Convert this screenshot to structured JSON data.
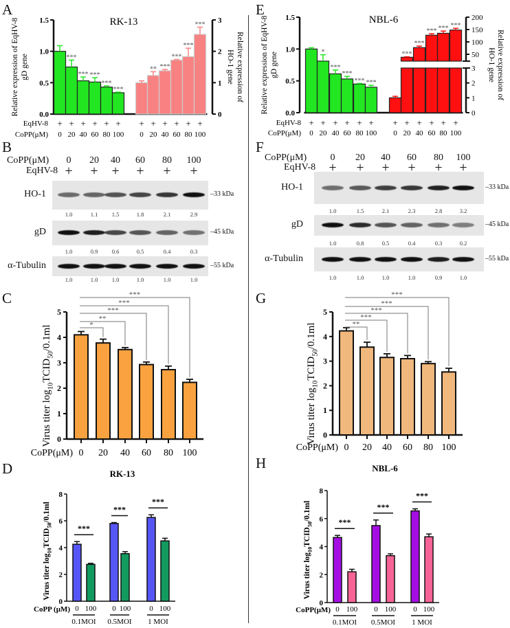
{
  "panel_labels": {
    "A": "A",
    "B": "B",
    "C": "C",
    "D": "D",
    "E": "E",
    "F": "F",
    "G": "G",
    "H": "H"
  },
  "blots": [
    {
      "id": "B",
      "copp_label": "CoPP(μM)",
      "virus_label": "EqHV-8",
      "plus": "+",
      "doses": [
        "0",
        "20",
        "40",
        "60",
        "80",
        "100"
      ],
      "rows": [
        {
          "name": "HO-1",
          "kda": "33 kDa",
          "quant": [
            "1.0",
            "1.1",
            "1.5",
            "1.8",
            "2.1",
            "2.9"
          ]
        },
        {
          "name": "gD",
          "kda": "45 kDa",
          "quant": [
            "1.0",
            "0.9",
            "0.6",
            "0.5",
            "0.4",
            "0.3"
          ]
        },
        {
          "name": "α-Tubulin",
          "kda": "55 kDa",
          "quant": [
            "1.0",
            "1.0",
            "1.0",
            "1.0",
            "1.0",
            "1.0"
          ]
        }
      ]
    },
    {
      "id": "F",
      "copp_label": "CoPP(μM)",
      "virus_label": "EqHV-8",
      "plus": "+",
      "doses": [
        "0",
        "20",
        "40",
        "60",
        "80",
        "100"
      ],
      "rows": [
        {
          "name": "HO-1",
          "kda": "33 kDa",
          "quant": [
            "1.0",
            "1.5",
            "2.1",
            "2.3",
            "2.8",
            "3.2"
          ]
        },
        {
          "name": "gD",
          "kda": "45 kDa",
          "quant": [
            "1.0",
            "0.8",
            "0.5",
            "0.4",
            "0.3",
            "0.2"
          ]
        },
        {
          "name": "α-Tubulin",
          "kda": "55 kDa",
          "quant": [
            "1.0",
            "1.0",
            "1.0",
            "1.0",
            "0.9",
            "1.0"
          ]
        }
      ]
    }
  ],
  "chart_data": [
    {
      "id": "A",
      "type": "bar",
      "title": "RK-13",
      "ylabel_left": [
        "Relative expression of EqHV-8",
        "gD gene"
      ],
      "ylabel_right": [
        "Relative expression of",
        "HO-1 gene"
      ],
      "row_labels": [
        "EqHV-8",
        "CoPP(μM)"
      ],
      "plus": "+",
      "categories": [
        "0",
        "20",
        "40",
        "60",
        "80",
        "100"
      ],
      "ylim_left": [
        0,
        1.5
      ],
      "left_ticks": [
        "0.0",
        "0.5",
        "1.0",
        "1.5"
      ],
      "ylim_right": [
        0,
        3
      ],
      "right_ticks": [
        "0",
        "1",
        "2",
        "3"
      ],
      "series": [
        {
          "name": "gD",
          "axis": "left",
          "color": "#22e622",
          "values": [
            1.0,
            0.75,
            0.53,
            0.51,
            0.43,
            0.34
          ],
          "errors": [
            0.09,
            0.11,
            0.06,
            0.07,
            0.02,
            0.01
          ],
          "sig": [
            "",
            "***",
            "***",
            "***",
            "***",
            "***"
          ]
        },
        {
          "name": "HO-1",
          "axis": "right",
          "color": "#f88282",
          "values": [
            1.0,
            1.23,
            1.38,
            1.72,
            1.83,
            2.54
          ],
          "errors": [
            0.06,
            0.12,
            0.04,
            0.02,
            0.27,
            0.23
          ],
          "sig": [
            "",
            "**",
            "***",
            "***",
            "***",
            "***"
          ]
        }
      ]
    },
    {
      "id": "E",
      "type": "bar",
      "title": "NBL-6",
      "ylabel_left": [
        "Relative expression of EqHV-8",
        "gD gene"
      ],
      "ylabel_right": [
        "Relative expression of",
        "HO-1 gene"
      ],
      "row_labels": [
        "EqHV-8",
        "CoPP(μM)"
      ],
      "plus": "+",
      "categories": [
        "0",
        "20",
        "40",
        "60",
        "80",
        "100"
      ],
      "ylim_left": [
        0,
        1.5
      ],
      "left_ticks": [
        "0.0",
        "0.5",
        "1.0",
        "1.5"
      ],
      "ylim_right_lower": [
        0,
        3
      ],
      "right_ticks_lower": [
        "0",
        "1",
        "2",
        "3"
      ],
      "ylim_right_upper": [
        22,
        200
      ],
      "right_ticks_upper": [
        "50",
        "100",
        "150",
        "200"
      ],
      "series": [
        {
          "name": "gD",
          "axis": "left",
          "color": "#22e622",
          "values": [
            1.0,
            0.81,
            0.61,
            0.53,
            0.45,
            0.4
          ],
          "errors": [
            0.02,
            0.1,
            0.06,
            0.04,
            0.01,
            0.03
          ],
          "sig": [
            "",
            "*",
            "***",
            "***",
            "***",
            "***"
          ]
        },
        {
          "name": "HO-1",
          "axis": "right",
          "color": "#ff1010",
          "values": [
            1.0,
            38,
            77,
            127,
            135,
            148
          ],
          "errors": [
            0.1,
            2,
            6,
            6,
            9,
            7
          ],
          "sig": [
            "",
            "***",
            "***",
            "***",
            "***",
            "***"
          ]
        }
      ]
    },
    {
      "id": "C",
      "type": "bar",
      "color": "#f9a23f",
      "ylabel_parts": [
        "Virus titer log",
        "10",
        "TCID",
        "50",
        "/0.1ml"
      ],
      "xlabel": "CoPP(μM)",
      "categories": [
        "0",
        "20",
        "40",
        "60",
        "80",
        "100"
      ],
      "ylim": [
        0,
        5
      ],
      "ticks": [
        "0",
        "1",
        "2",
        "3",
        "4",
        "5"
      ],
      "values": [
        4.1,
        3.78,
        3.52,
        2.93,
        2.73,
        2.23
      ],
      "errors": [
        0.13,
        0.15,
        0.08,
        0.1,
        0.14,
        0.12
      ],
      "comparisons": [
        {
          "from": "0",
          "to": "20",
          "label": "*"
        },
        {
          "from": "0",
          "to": "40",
          "label": "**"
        },
        {
          "from": "0",
          "to": "60",
          "label": "***"
        },
        {
          "from": "0",
          "to": "80",
          "label": "***"
        },
        {
          "from": "0",
          "to": "100",
          "label": "***"
        }
      ]
    },
    {
      "id": "G",
      "type": "bar",
      "color": "#f0b87c",
      "ylabel_parts": [
        "Virus titer log",
        "10",
        "TCID",
        "50",
        "/0.1ml"
      ],
      "xlabel": "CoPP(μM)",
      "categories": [
        "0",
        "20",
        "40",
        "60",
        "80",
        "100"
      ],
      "ylim": [
        0,
        5
      ],
      "ticks": [
        "0",
        "1",
        "2",
        "3",
        "4",
        "5"
      ],
      "values": [
        4.23,
        3.57,
        3.15,
        3.1,
        2.9,
        2.56
      ],
      "errors": [
        0.13,
        0.2,
        0.15,
        0.13,
        0.08,
        0.15
      ],
      "comparisons": [
        {
          "from": "0",
          "to": "20",
          "label": "**"
        },
        {
          "from": "0",
          "to": "40",
          "label": "***"
        },
        {
          "from": "0",
          "to": "60",
          "label": "***"
        },
        {
          "from": "0",
          "to": "80",
          "label": "***"
        },
        {
          "from": "0",
          "to": "100",
          "label": "***"
        }
      ]
    },
    {
      "id": "D",
      "type": "bar",
      "title": "RK-13",
      "ylabel_parts": [
        "Virus titer log",
        "10",
        "TCID",
        "50",
        "/0.1ml"
      ],
      "xlabel": "CoPP (μM)",
      "groups": [
        "0.1MOI",
        "0.5MOI",
        "1 MOI"
      ],
      "sub_categories": [
        "0",
        "100"
      ],
      "ylim": [
        0,
        8
      ],
      "ticks": [
        "0",
        "2",
        "4",
        "6",
        "8"
      ],
      "series": [
        {
          "name": "0",
          "color": "#5656f7",
          "values": [
            4.25,
            5.8,
            6.25
          ],
          "errors": [
            0.2,
            0.07,
            0.2
          ]
        },
        {
          "name": "100",
          "color": "#139a5e",
          "values": [
            2.75,
            3.55,
            4.5
          ],
          "errors": [
            0.08,
            0.15,
            0.2
          ]
        }
      ],
      "sig": [
        "***",
        "***",
        "***"
      ]
    },
    {
      "id": "H",
      "type": "bar",
      "title": "NBL-6",
      "ylabel_parts": [
        "Virus titer log",
        "10",
        "TCID",
        "50",
        "/0.1ml"
      ],
      "xlabel": "CoPP(μM)",
      "groups": [
        "0.1MOI",
        "0.5MOI",
        "1 MOI"
      ],
      "sub_categories": [
        "0",
        "100"
      ],
      "ylim": [
        0,
        8
      ],
      "ticks": [
        "0",
        "2",
        "4",
        "6",
        "8"
      ],
      "series": [
        {
          "name": "0",
          "color": "#a40ee3",
          "values": [
            4.65,
            5.5,
            6.55
          ],
          "errors": [
            0.15,
            0.4,
            0.15
          ]
        },
        {
          "name": "100",
          "color": "#f76396",
          "values": [
            2.2,
            3.35,
            4.7
          ],
          "errors": [
            0.18,
            0.13,
            0.2
          ]
        }
      ],
      "sig": [
        "***",
        "***",
        "***"
      ]
    }
  ]
}
